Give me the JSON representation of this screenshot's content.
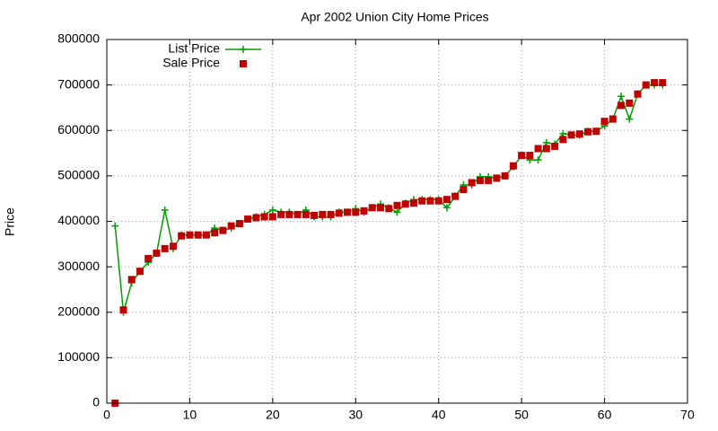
{
  "chart_data": {
    "type": "line",
    "title": "Apr 2002 Union City Home Prices",
    "y_label": "Price",
    "x": [
      1,
      2,
      3,
      4,
      5,
      6,
      7,
      8,
      9,
      10,
      11,
      12,
      13,
      14,
      15,
      16,
      17,
      18,
      19,
      20,
      21,
      22,
      23,
      24,
      25,
      26,
      27,
      28,
      29,
      30,
      31,
      32,
      33,
      34,
      35,
      36,
      37,
      38,
      39,
      40,
      41,
      42,
      43,
      44,
      45,
      46,
      47,
      48,
      49,
      50,
      51,
      52,
      53,
      54,
      55,
      56,
      57,
      58,
      59,
      60,
      61,
      62,
      63,
      64,
      65,
      66,
      67
    ],
    "series": [
      {
        "name": "List Price",
        "color": "#00a000",
        "style": "linespoints",
        "values": [
          390000,
          200000,
          265000,
          290000,
          310000,
          330000,
          425000,
          340000,
          370000,
          370000,
          370000,
          370000,
          385000,
          380000,
          385000,
          395000,
          405000,
          410000,
          415000,
          425000,
          420000,
          420000,
          415000,
          425000,
          410000,
          410000,
          410000,
          420000,
          420000,
          428000,
          420000,
          430000,
          438000,
          430000,
          420000,
          440000,
          448000,
          448000,
          448000,
          448000,
          430000,
          455000,
          480000,
          480000,
          498000,
          498000,
          495000,
          500000,
          520000,
          545000,
          535000,
          535000,
          573000,
          570000,
          593000,
          590000,
          590000,
          598000,
          598000,
          610000,
          625000,
          675000,
          625000,
          680000,
          700000,
          700000,
          700000
        ]
      },
      {
        "name": "Sale Price",
        "color": "#c00000",
        "style": "points",
        "values": [
          0,
          205000,
          272000,
          290000,
          318000,
          330000,
          340000,
          345000,
          368000,
          370000,
          370000,
          370000,
          375000,
          380000,
          390000,
          395000,
          405000,
          408000,
          410000,
          410000,
          415000,
          415000,
          415000,
          415000,
          413000,
          415000,
          415000,
          418000,
          420000,
          420000,
          423000,
          430000,
          430000,
          428000,
          435000,
          438000,
          440000,
          445000,
          445000,
          445000,
          448000,
          455000,
          470000,
          485000,
          490000,
          490000,
          495000,
          500000,
          522000,
          545000,
          545000,
          560000,
          560000,
          565000,
          580000,
          590000,
          592000,
          597000,
          598000,
          620000,
          625000,
          655000,
          660000,
          680000,
          700000,
          705000,
          705000
        ]
      }
    ],
    "xlim": [
      0,
      70
    ],
    "xticks": [
      0,
      10,
      20,
      30,
      40,
      50,
      60,
      70
    ],
    "ylim": [
      0,
      800000
    ],
    "yticks": [
      0,
      100000,
      200000,
      300000,
      400000,
      500000,
      600000,
      700000,
      800000
    ],
    "grid": true,
    "legend": "top-left"
  }
}
